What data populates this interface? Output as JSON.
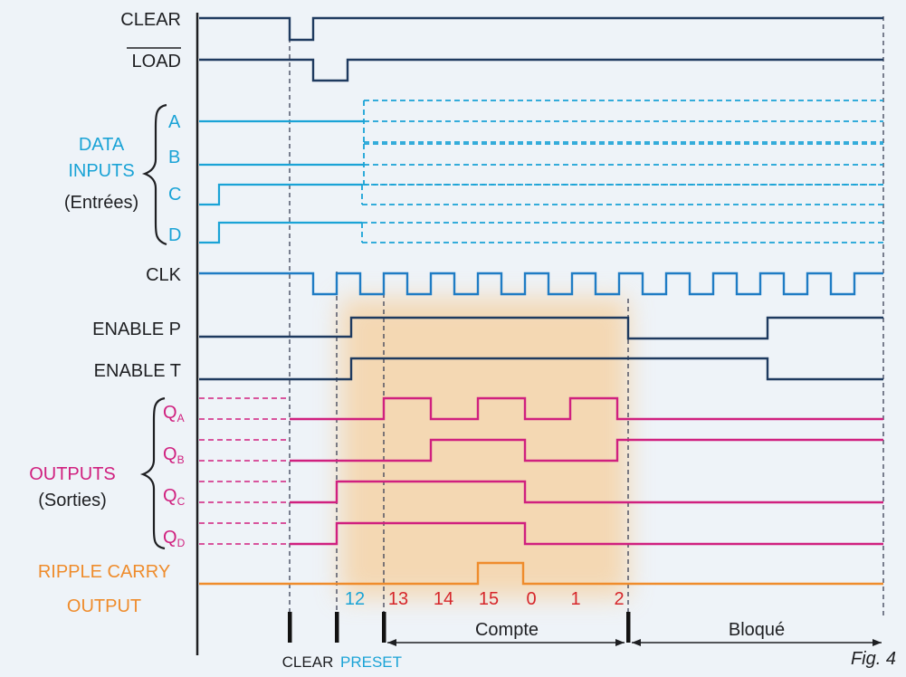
{
  "colors": {
    "dark": "#1e1f22",
    "navy": "#1e3a5f",
    "cyan": "#1aa3d6",
    "clk": "#1f7cc4",
    "magenta": "#d0207f",
    "orange": "#ef8c2c",
    "red": "#d6262a",
    "highlight": "#f6cf9c"
  },
  "labels": {
    "clear": "CLEAR",
    "load": "LOAD",
    "a": "A",
    "b": "B",
    "c": "C",
    "d": "D",
    "data1": "DATA",
    "data2": "INPUTS",
    "data3": "(Entrées)",
    "clk": "CLK",
    "enp": "ENABLE P",
    "ent": "ENABLE T",
    "qa": "Q",
    "qa_sub": "A",
    "qb": "Q",
    "qb_sub": "B",
    "qc": "Q",
    "qc_sub": "C",
    "qd": "Q",
    "qd_sub": "D",
    "out1": "OUTPUTS",
    "out2": "(Sorties)",
    "rc1": "RIPPLE CARRY",
    "rc2": "OUTPUT"
  },
  "counts": [
    "12",
    "13",
    "14",
    "15",
    "0",
    "1",
    "2"
  ],
  "markers": {
    "clear": "CLEAR",
    "preset": "PRESET",
    "compte": "Compte",
    "bloque": "Bloqué"
  },
  "figure_label": "Fig. 4"
}
